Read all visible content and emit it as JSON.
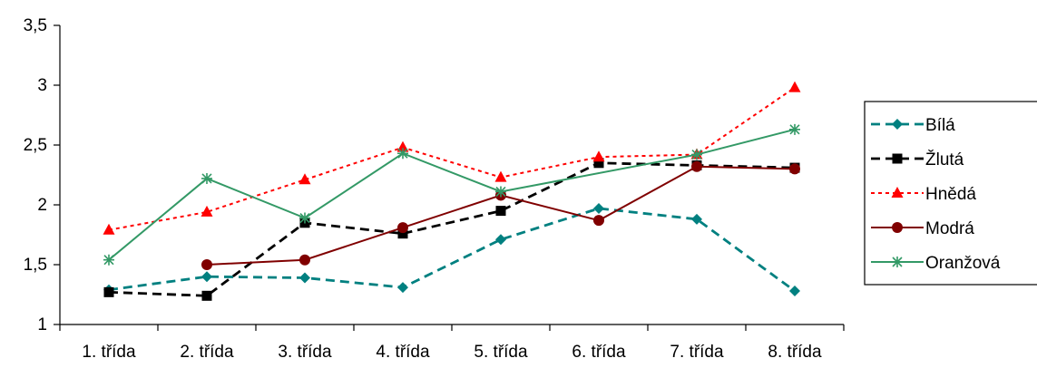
{
  "chart_data": {
    "type": "line",
    "categories": [
      "1. třída",
      "2. třída",
      "3. třída",
      "4. třída",
      "5. třída",
      "6. třída",
      "7. třída",
      "8. třída"
    ],
    "ylim": [
      1,
      3.5
    ],
    "yticks": [
      "1",
      "1,5",
      "2",
      "2,5",
      "3",
      "3,5"
    ],
    "ytick_values": [
      1,
      1.5,
      2,
      2.5,
      3,
      3.5
    ],
    "grid": false,
    "legend_position": "right",
    "series": [
      {
        "name": "Bílá",
        "values": [
          1.29,
          1.4,
          1.39,
          1.31,
          1.71,
          1.97,
          1.88,
          1.28
        ],
        "color": "#008080",
        "dash": "dashed",
        "marker": "diamond"
      },
      {
        "name": "Žlutá",
        "values": [
          1.27,
          1.24,
          1.85,
          1.76,
          1.95,
          2.35,
          2.33,
          2.31
        ],
        "color": "#000000",
        "dash": "dashed",
        "marker": "square"
      },
      {
        "name": "Hnědá",
        "values": [
          1.79,
          1.94,
          2.21,
          2.48,
          2.23,
          2.4,
          2.42,
          2.98
        ],
        "color": "#ff0000",
        "dash": "dotted",
        "marker": "triangle"
      },
      {
        "name": "Modrá",
        "values": [
          null,
          1.5,
          1.54,
          1.81,
          2.08,
          1.87,
          2.32,
          2.3
        ],
        "color": "#800000",
        "dash": "solid",
        "marker": "circle"
      },
      {
        "name": "Oranžová",
        "values": [
          1.54,
          2.22,
          1.89,
          2.43,
          2.11,
          null,
          2.42,
          2.63
        ],
        "color": "#339966",
        "dash": "solid",
        "marker": "star"
      }
    ]
  }
}
